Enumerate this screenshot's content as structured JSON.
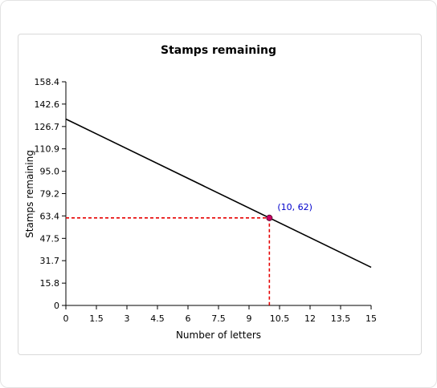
{
  "chart_data": {
    "type": "line",
    "title": "Stamps remaining",
    "xlabel": "Number of letters",
    "ylabel": "Stamps remaining",
    "xlim": [
      0,
      15
    ],
    "ylim": [
      0,
      158.4
    ],
    "x_ticks": [
      "0",
      "1.5",
      "3",
      "4.5",
      "6",
      "7.5",
      "9",
      "10.5",
      "12",
      "13.5",
      "15"
    ],
    "y_ticks": [
      "0",
      "15.8",
      "31.7",
      "47.5",
      "63.4",
      "79.2",
      "95.0",
      "110.9",
      "126.7",
      "142.6",
      "158.4"
    ],
    "grid": false,
    "series": [
      {
        "x": [
          0,
          15
        ],
        "y": [
          132,
          27
        ],
        "color": "#000000"
      }
    ],
    "highlight": {
      "x": 10,
      "y": 62,
      "label": "(10, 62)",
      "guide_color": "#e60000",
      "marker_color": "#cc0066",
      "label_color": "#0000cc"
    }
  }
}
